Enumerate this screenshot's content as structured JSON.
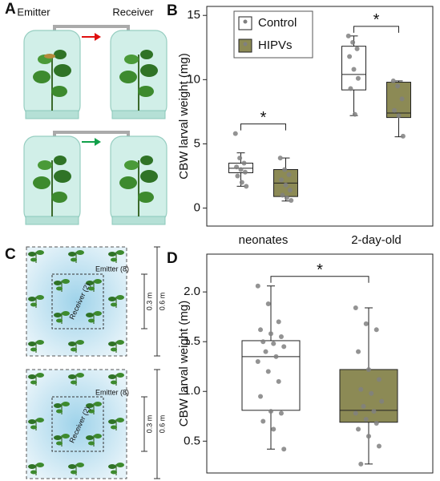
{
  "panels": {
    "A": {
      "label": "A",
      "emitter": "Emitter",
      "receiver": "Receiver"
    },
    "C": {
      "label": "C",
      "top": {
        "emitter": "Emitter (8)",
        "receiver": "Receiver (2)",
        "inner": "0.3 m",
        "outer": "0.6 m"
      },
      "bottom": {
        "emitter": "Emitter (8)",
        "receiver": "Receiver (2)",
        "inner": "0.3 m",
        "outer": "0.6 m"
      }
    }
  },
  "chart_data": [
    {
      "type": "box",
      "panel_label": "B",
      "ylabel": "CBW larval weight (mg)",
      "categories": [
        "neonates",
        "2-day-old"
      ],
      "ylim": [
        -1.4,
        15.7
      ],
      "yticks": [
        0,
        5,
        10,
        15
      ],
      "legend": "upper left",
      "significance": [
        "*",
        "*"
      ],
      "series": [
        {
          "name": "Control",
          "color": "#ffffff",
          "stats": [
            {
              "min": 1.7,
              "q1": 2.75,
              "median": 3.1,
              "q3": 3.5,
              "max": 4.3,
              "points": [
                5.8,
                3.9,
                3.5,
                3.2,
                3.0,
                2.8,
                2.5,
                2.0,
                1.7
              ]
            },
            {
              "min": 7.2,
              "q1": 9.2,
              "median": 10.4,
              "q3": 12.6,
              "max": 13.4,
              "points": [
                13.4,
                12.9,
                12.4,
                11.8,
                10.8,
                10.1,
                9.3,
                7.3
              ]
            }
          ]
        },
        {
          "name": "HIPVs",
          "color": "#8c8a55",
          "stats": [
            {
              "min": 0.55,
              "q1": 0.9,
              "median": 1.95,
              "q3": 3.0,
              "max": 3.9,
              "points": [
                3.9,
                3.0,
                2.6,
                2.2,
                1.8,
                1.4,
                1.0,
                0.8,
                0.6
              ]
            },
            {
              "min": 5.55,
              "q1": 7.05,
              "median": 7.4,
              "q3": 9.8,
              "max": 9.9,
              "points": [
                9.9,
                9.5,
                8.5,
                7.6,
                7.2,
                5.6
              ]
            }
          ]
        }
      ]
    },
    {
      "type": "box",
      "panel_label": "D",
      "ylabel": "CBW larval weight (mg)",
      "ylim": [
        0.18,
        2.38
      ],
      "yticks": [
        0.5,
        {
          "value": 1,
          "label": "1.0"
        },
        1.5,
        {
          "value": 2,
          "label": "2.0"
        }
      ],
      "significance": [
        "*"
      ],
      "series": [
        {
          "color": "#ffffff",
          "stats": [
            {
              "min": 0.42,
              "q1": 0.81,
              "median": 1.35,
              "q3": 1.51,
              "max": 2.06,
              "points": [
                2.06,
                1.88,
                1.7,
                1.62,
                1.58,
                1.55,
                1.5,
                1.48,
                1.45,
                1.4,
                1.35,
                1.3,
                1.2,
                1.1,
                0.95,
                0.8,
                0.78,
                0.7,
                0.62,
                0.42
              ]
            }
          ]
        },
        {
          "color": "#8c8a55",
          "stats": [
            {
              "min": 0.27,
              "q1": 0.69,
              "median": 0.81,
              "q3": 1.22,
              "max": 1.84,
              "points": [
                1.84,
                1.68,
                1.62,
                1.4,
                1.22,
                1.12,
                1.02,
                0.98,
                0.9,
                0.85,
                0.8,
                0.78,
                0.72,
                0.68,
                0.62,
                0.55,
                0.45,
                0.27
              ]
            }
          ]
        }
      ]
    }
  ]
}
